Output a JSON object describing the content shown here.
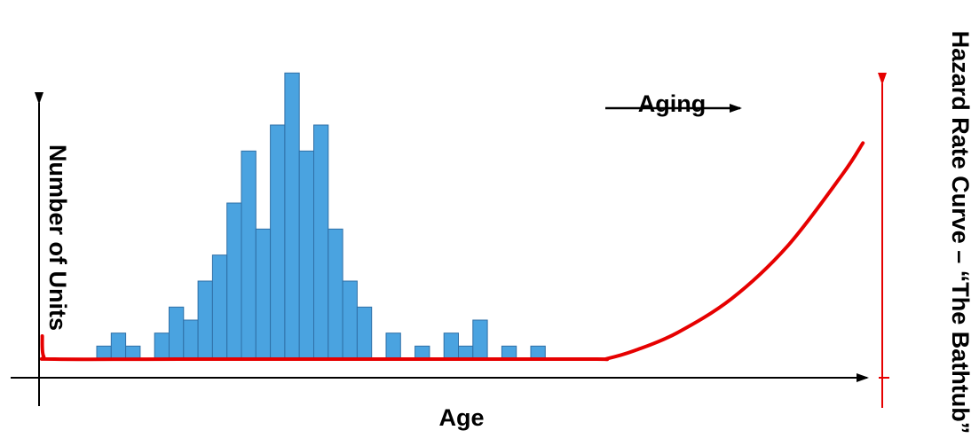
{
  "chart_data": {
    "type": "bar",
    "title": "",
    "xlabel": "Age",
    "ylabel": "Number of Units",
    "secondary_ylabel": "Hazard Rate Curve – “The Bathtub”",
    "annotation": "Aging",
    "grid": false,
    "legend": "none",
    "bar_color": "#4aa3e0",
    "bar_edge_color": "#2f6fa6",
    "axis_color": "#000000",
    "hazard_color": "#e60000",
    "histogram": {
      "bins": [
        {
          "bin": 1,
          "value": 0.5
        },
        {
          "bin": 2,
          "value": 1
        },
        {
          "bin": 3,
          "value": 0.5
        },
        {
          "bin": 4,
          "value": 0
        },
        {
          "bin": 5,
          "value": 1
        },
        {
          "bin": 6,
          "value": 2
        },
        {
          "bin": 7,
          "value": 1.5
        },
        {
          "bin": 8,
          "value": 3
        },
        {
          "bin": 9,
          "value": 4
        },
        {
          "bin": 10,
          "value": 6
        },
        {
          "bin": 11,
          "value": 8
        },
        {
          "bin": 12,
          "value": 5
        },
        {
          "bin": 13,
          "value": 9
        },
        {
          "bin": 14,
          "value": 11
        },
        {
          "bin": 15,
          "value": 8
        },
        {
          "bin": 16,
          "value": 9
        },
        {
          "bin": 17,
          "value": 5
        },
        {
          "bin": 18,
          "value": 3
        },
        {
          "bin": 19,
          "value": 2
        },
        {
          "bin": 20,
          "value": 0
        },
        {
          "bin": 21,
          "value": 1
        },
        {
          "bin": 22,
          "value": 0
        },
        {
          "bin": 23,
          "value": 0.5
        },
        {
          "bin": 24,
          "value": 0
        },
        {
          "bin": 25,
          "value": 1
        },
        {
          "bin": 26,
          "value": 0.5
        },
        {
          "bin": 27,
          "value": 1.5
        },
        {
          "bin": 28,
          "value": 0
        },
        {
          "bin": 29,
          "value": 0.5
        },
        {
          "bin": 30,
          "value": 0
        },
        {
          "bin": 31,
          "value": 0.5
        }
      ],
      "xlim": [
        0,
        60
      ],
      "ylim": [
        0,
        12
      ]
    },
    "hazard_curve": {
      "points": [
        {
          "x": 0.1,
          "y": 0.9
        },
        {
          "x": 0.2,
          "y": 0.2
        },
        {
          "x": 1,
          "y": 0.1
        },
        {
          "x": 10,
          "y": 0.1
        },
        {
          "x": 20,
          "y": 0.1
        },
        {
          "x": 30,
          "y": 0.1
        },
        {
          "x": 40,
          "y": 0.1
        },
        {
          "x": 41,
          "y": 0.12
        },
        {
          "x": 43,
          "y": 0.4
        },
        {
          "x": 46,
          "y": 1.0
        },
        {
          "x": 50,
          "y": 2.2
        },
        {
          "x": 54,
          "y": 4.0
        },
        {
          "x": 58,
          "y": 6.5
        },
        {
          "x": 59.5,
          "y": 7.6
        }
      ]
    }
  }
}
